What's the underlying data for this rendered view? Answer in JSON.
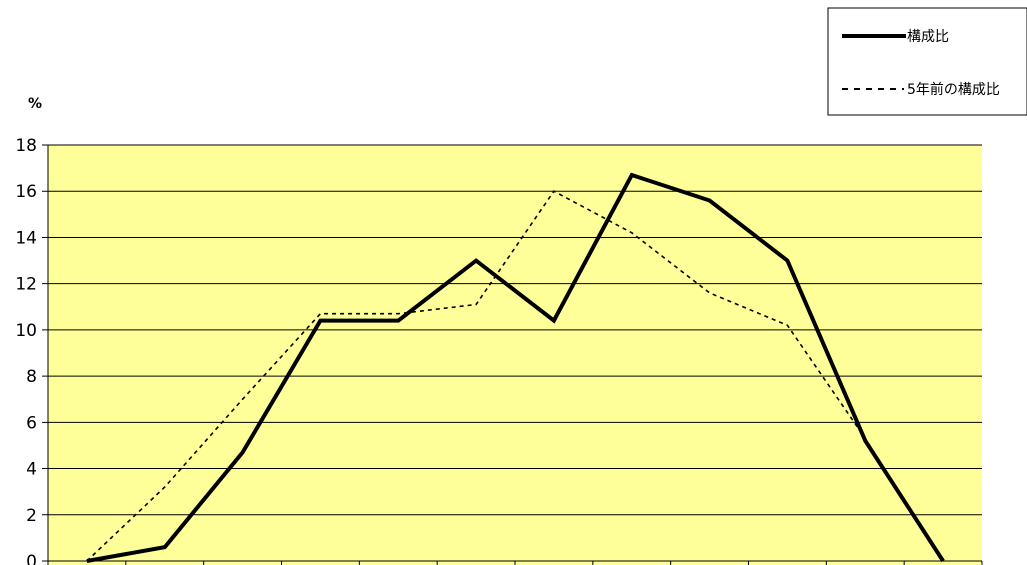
{
  "chart_data": {
    "type": "line",
    "y_unit_label": "%",
    "ylim": [
      0,
      18
    ],
    "yticks": [
      0,
      2,
      4,
      6,
      8,
      10,
      12,
      14,
      16,
      18
    ],
    "grid": true,
    "legend_position": "top-right",
    "plot_background": "#ffff99",
    "series": [
      {
        "name": "構成比",
        "style": "solid",
        "color": "#000000",
        "values": [
          0,
          0.6,
          4.7,
          10.4,
          10.4,
          13.0,
          10.4,
          16.7,
          15.6,
          13.0,
          5.2,
          0
        ]
      },
      {
        "name": "5年前の構成比",
        "style": "dotted",
        "color": "#000000",
        "values": [
          0,
          3.2,
          7.0,
          10.7,
          10.7,
          11.1,
          16.0,
          14.2,
          11.6,
          10.2,
          5.3,
          0
        ]
      }
    ]
  }
}
